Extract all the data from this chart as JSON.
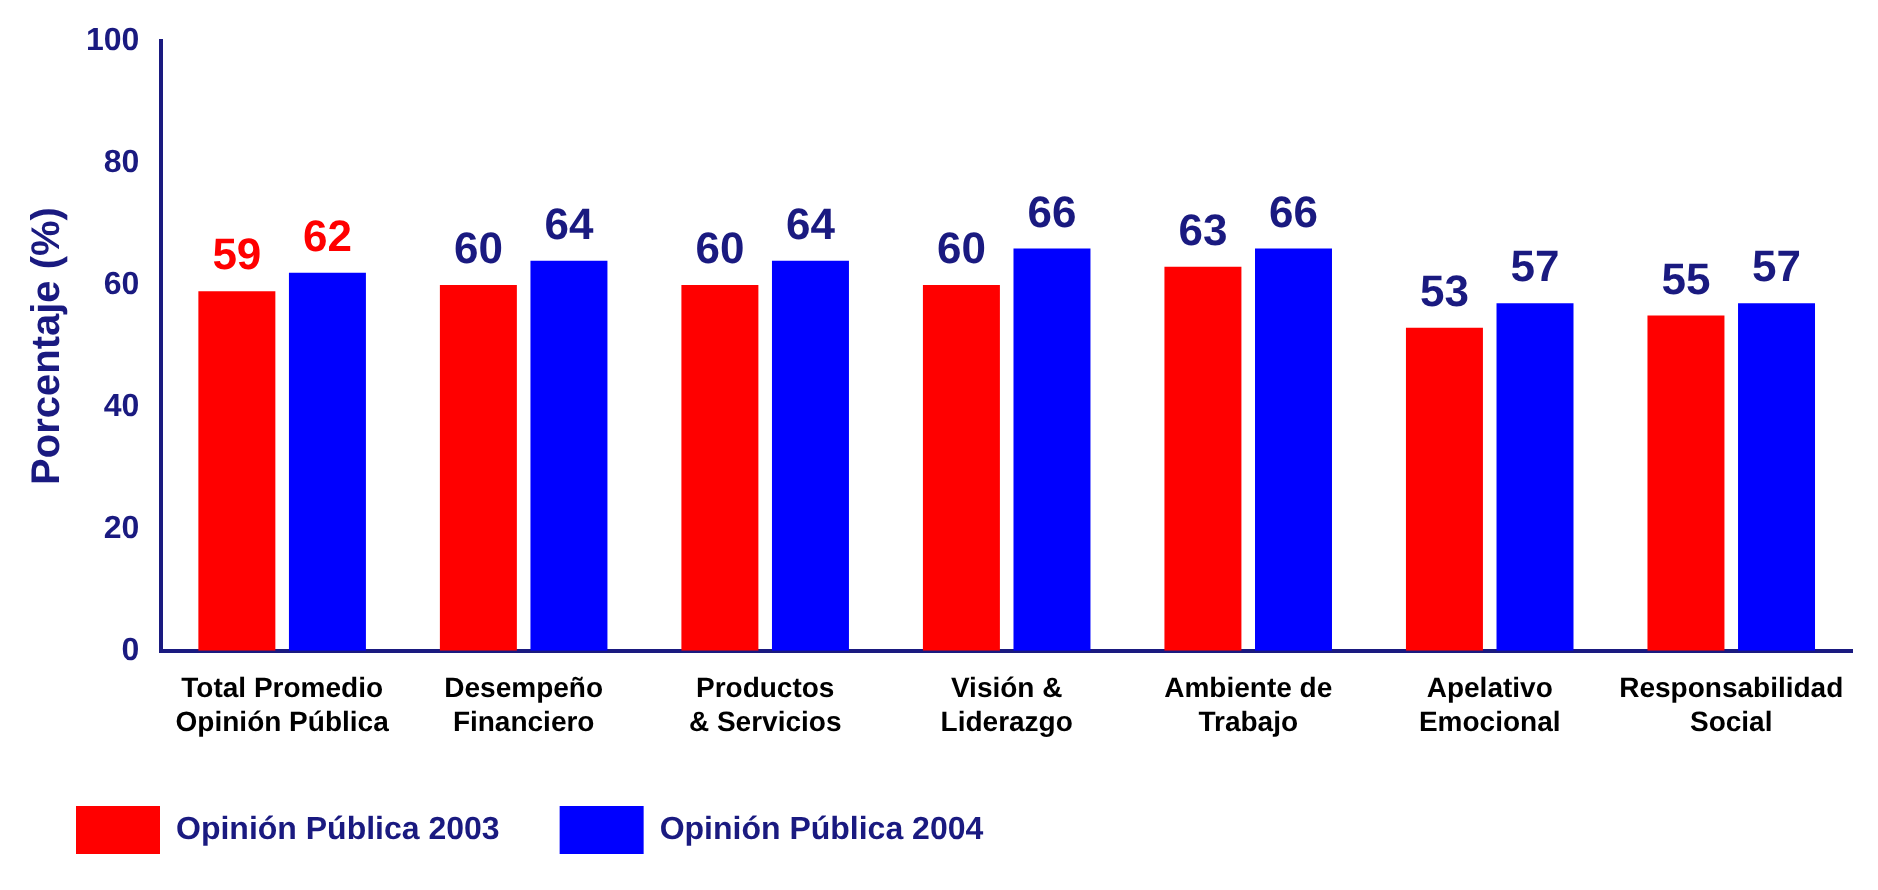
{
  "chart_data": {
    "type": "bar",
    "ylabel": "Porcentaje (%)",
    "categories": [
      "Total Promedio\nOpinión Pública",
      "Desempeño\nFinanciero",
      "Productos\n& Servicios",
      "Visión &\nLiderazgo",
      "Ambiente de\nTrabajo",
      "Apelativo\nEmocional",
      "Responsabilidad\nSocial"
    ],
    "series": [
      {
        "name": "Opinión Pública 2003",
        "color": "#ff0000",
        "values": [
          59,
          60,
          60,
          60,
          63,
          53,
          55
        ]
      },
      {
        "name": "Opinión Pública 2004",
        "color": "#0000ff",
        "values": [
          62,
          64,
          64,
          66,
          66,
          57,
          57
        ]
      }
    ],
    "ylim": [
      0,
      100
    ],
    "yticks": [
      0,
      20,
      40,
      60,
      80,
      100
    ],
    "grid": false,
    "legend": "bottom left",
    "data_labels": true
  }
}
